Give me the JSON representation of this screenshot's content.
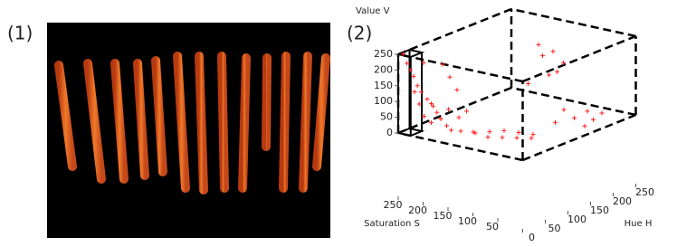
{
  "figure": {
    "labels": [
      "(1)",
      "(2)"
    ]
  },
  "chart_data": {
    "type": "scatter3d",
    "xlabel": "Hue H",
    "ylabel": "Saturation S",
    "zlabel": "Value V",
    "xlim": [
      0,
      250
    ],
    "ylim": [
      0,
      250
    ],
    "zlim": [
      0,
      250
    ],
    "xticks": [
      0,
      50,
      100,
      150,
      200,
      250
    ],
    "yticks": [
      50,
      100,
      150,
      200,
      250
    ],
    "zticks": [
      0,
      50,
      100,
      150,
      200,
      250
    ],
    "color": "#ff2020",
    "x": [
      5,
      8,
      10,
      12,
      15,
      18,
      20,
      22,
      25,
      28,
      30,
      10,
      15,
      20,
      25,
      30,
      35,
      40,
      12,
      18,
      40,
      50,
      60,
      45,
      70,
      55,
      80,
      65,
      90,
      75,
      100,
      85,
      35,
      45,
      50,
      30,
      200,
      210,
      220,
      190,
      230,
      200,
      210,
      160,
      180,
      200,
      220,
      170,
      190,
      230
    ],
    "y": [
      245,
      240,
      235,
      230,
      225,
      220,
      210,
      200,
      195,
      190,
      180,
      170,
      160,
      150,
      240,
      235,
      230,
      220,
      210,
      200,
      180,
      170,
      150,
      140,
      130,
      120,
      110,
      100,
      90,
      80,
      70,
      60,
      160,
      190,
      210,
      140,
      150,
      130,
      160,
      120,
      140,
      100,
      180,
      80,
      60,
      40,
      70,
      30,
      90,
      50
    ],
    "z": [
      250,
      220,
      200,
      180,
      150,
      130,
      110,
      90,
      70,
      50,
      30,
      240,
      200,
      160,
      120,
      80,
      40,
      20,
      230,
      100,
      10,
      5,
      0,
      15,
      5,
      0,
      10,
      0,
      5,
      0,
      0,
      0,
      60,
      70,
      30,
      90,
      200,
      180,
      150,
      120,
      100,
      160,
      60,
      0,
      10,
      0,
      5,
      0,
      20,
      0
    ]
  }
}
